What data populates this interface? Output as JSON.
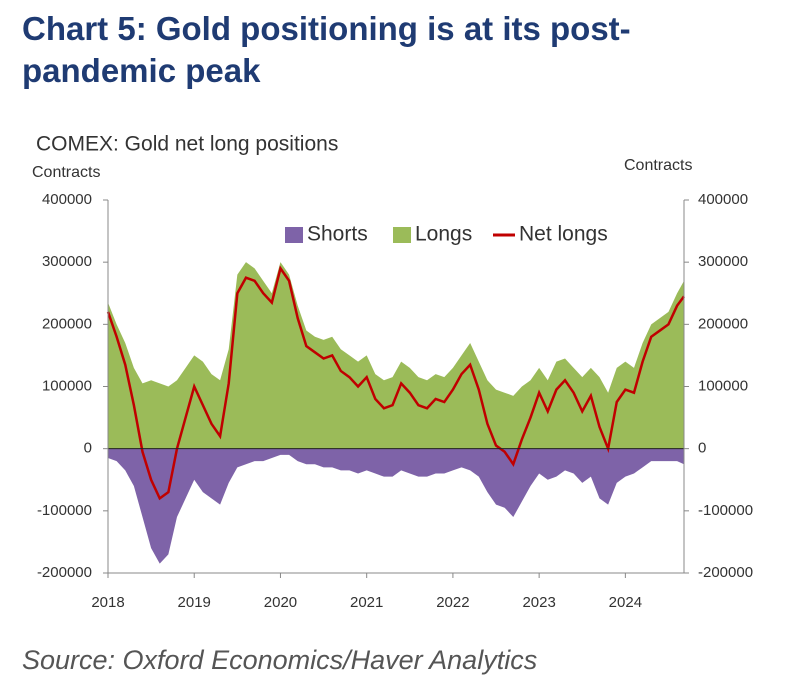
{
  "chart_data": {
    "type": "area-line",
    "title": "Chart 5: Gold positioning is at its post-pandemic peak",
    "subtitle": "COMEX: Gold net long positions",
    "y_label": "Contracts",
    "y2_label": "Contracts",
    "source": "Source: Oxford Economics/Haver Analytics",
    "x": [
      2018.0,
      2018.1,
      2018.2,
      2018.3,
      2018.4,
      2018.5,
      2018.6,
      2018.7,
      2018.8,
      2018.9,
      2019.0,
      2019.1,
      2019.2,
      2019.3,
      2019.4,
      2019.5,
      2019.6,
      2019.7,
      2019.8,
      2019.9,
      2020.0,
      2020.1,
      2020.2,
      2020.3,
      2020.4,
      2020.5,
      2020.6,
      2020.7,
      2020.8,
      2020.9,
      2021.0,
      2021.1,
      2021.2,
      2021.3,
      2021.4,
      2021.5,
      2021.6,
      2021.7,
      2021.8,
      2021.9,
      2022.0,
      2022.1,
      2022.2,
      2022.3,
      2022.4,
      2022.5,
      2022.6,
      2022.7,
      2022.8,
      2022.9,
      2023.0,
      2023.1,
      2023.2,
      2023.3,
      2023.4,
      2023.5,
      2023.6,
      2023.7,
      2023.8,
      2023.9,
      2024.0,
      2024.1,
      2024.2,
      2024.3,
      2024.4,
      2024.5,
      2024.6,
      2024.68
    ],
    "series": [
      {
        "name": "Shorts",
        "color": "#7e63a8",
        "kind": "area",
        "values": [
          -15000,
          -20000,
          -35000,
          -60000,
          -110000,
          -160000,
          -185000,
          -170000,
          -110000,
          -80000,
          -50000,
          -70000,
          -80000,
          -90000,
          -55000,
          -30000,
          -25000,
          -20000,
          -20000,
          -15000,
          -10000,
          -10000,
          -20000,
          -25000,
          -25000,
          -30000,
          -30000,
          -35000,
          -35000,
          -40000,
          -35000,
          -40000,
          -45000,
          -45000,
          -35000,
          -40000,
          -45000,
          -45000,
          -40000,
          -40000,
          -35000,
          -30000,
          -35000,
          -45000,
          -70000,
          -90000,
          -95000,
          -110000,
          -85000,
          -60000,
          -40000,
          -50000,
          -45000,
          -35000,
          -40000,
          -55000,
          -45000,
          -80000,
          -90000,
          -55000,
          -45000,
          -40000,
          -30000,
          -20000,
          -20000,
          -20000,
          -20000,
          -25000
        ]
      },
      {
        "name": "Longs",
        "color": "#9bbb59",
        "kind": "area",
        "values": [
          235000,
          200000,
          170000,
          130000,
          105000,
          110000,
          105000,
          100000,
          110000,
          130000,
          150000,
          140000,
          120000,
          110000,
          160000,
          280000,
          300000,
          290000,
          270000,
          250000,
          300000,
          280000,
          230000,
          190000,
          180000,
          175000,
          180000,
          160000,
          150000,
          140000,
          150000,
          120000,
          110000,
          115000,
          140000,
          130000,
          115000,
          110000,
          120000,
          115000,
          130000,
          150000,
          170000,
          140000,
          110000,
          95000,
          90000,
          85000,
          100000,
          110000,
          130000,
          110000,
          140000,
          145000,
          130000,
          115000,
          130000,
          115000,
          90000,
          130000,
          140000,
          130000,
          170000,
          200000,
          210000,
          220000,
          250000,
          270000
        ]
      },
      {
        "name": "Net longs",
        "color": "#c00000",
        "kind": "line",
        "values": [
          220000,
          180000,
          135000,
          70000,
          -5000,
          -50000,
          -80000,
          -70000,
          0,
          50000,
          100000,
          70000,
          40000,
          20000,
          105000,
          250000,
          275000,
          270000,
          250000,
          235000,
          290000,
          270000,
          210000,
          165000,
          155000,
          145000,
          150000,
          125000,
          115000,
          100000,
          115000,
          80000,
          65000,
          70000,
          105000,
          90000,
          70000,
          65000,
          80000,
          75000,
          95000,
          120000,
          135000,
          95000,
          40000,
          5000,
          -5000,
          -25000,
          15000,
          50000,
          90000,
          60000,
          95000,
          110000,
          90000,
          60000,
          85000,
          35000,
          0,
          75000,
          95000,
          90000,
          140000,
          180000,
          190000,
          200000,
          230000,
          245000
        ]
      }
    ],
    "xlim": [
      2018,
      2024.68
    ],
    "xticks": [
      2018,
      2019,
      2020,
      2021,
      2022,
      2023,
      2024
    ],
    "ylim": [
      -200000,
      400000
    ],
    "yticks": [
      -200000,
      -100000,
      0,
      100000,
      200000,
      300000,
      400000
    ],
    "y2lim": [
      -200000,
      400000
    ],
    "y2ticks": [
      -200000,
      -100000,
      0,
      100000,
      200000,
      300000,
      400000
    ],
    "legend": "top"
  }
}
